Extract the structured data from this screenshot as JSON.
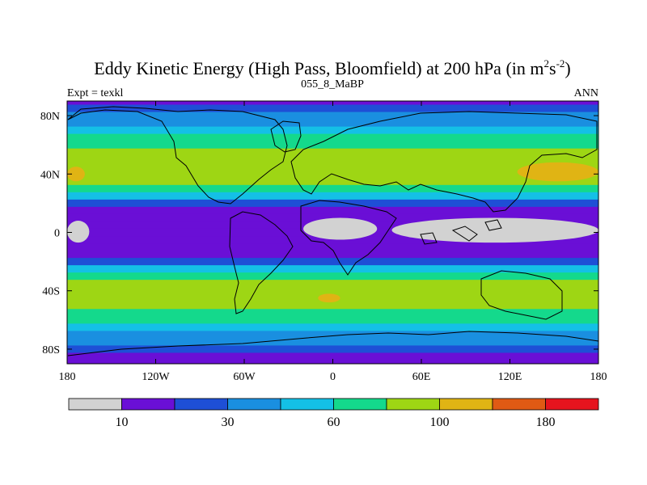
{
  "chart_data": {
    "type": "heatmap",
    "title": "Eddy Kinetic Energy (High Pass, Bloomfield) at 200 hPa (in m",
    "title_sup1": "2",
    "title_mid": "s",
    "title_sup2": "-2",
    "title_end": ")",
    "left_string": "Expt = texkl",
    "center_string": "055_8_MaBP",
    "right_string": "ANN",
    "x_ticks": [
      {
        "value": -180,
        "label": "180"
      },
      {
        "value": -120,
        "label": "120W"
      },
      {
        "value": -60,
        "label": "60W"
      },
      {
        "value": 0,
        "label": "0"
      },
      {
        "value": 60,
        "label": "60E"
      },
      {
        "value": 120,
        "label": "120E"
      },
      {
        "value": 180,
        "label": "180"
      }
    ],
    "y_ticks": [
      {
        "value": 80,
        "label": "80N"
      },
      {
        "value": 40,
        "label": "40N"
      },
      {
        "value": 0,
        "label": "0"
      },
      {
        "value": -40,
        "label": "40S"
      },
      {
        "value": -80,
        "label": "80S"
      }
    ],
    "xlim": [
      -180,
      180
    ],
    "ylim": [
      -90,
      90
    ],
    "units": "m2 s-2",
    "levels": [
      10,
      20,
      30,
      45,
      60,
      80,
      100,
      120,
      140,
      180
    ],
    "colorbar": {
      "colors": [
        "#d2d2d2",
        "#6a0fd6",
        "#1e4fd6",
        "#1a8fe0",
        "#14c0e6",
        "#14d98c",
        "#9ed614",
        "#e0b414",
        "#e05a14",
        "#e6141e"
      ],
      "labels": [
        {
          "after_box": 1,
          "text": "10"
        },
        {
          "after_box": 3,
          "text": "30"
        },
        {
          "after_box": 5,
          "text": "60"
        },
        {
          "after_box": 7,
          "text": "100"
        },
        {
          "after_box": 9,
          "text": "180"
        }
      ]
    },
    "zonal_band_estimates": [
      {
        "lat": 90,
        "value": 14
      },
      {
        "lat": 85,
        "value": 22
      },
      {
        "lat": 80,
        "value": 32
      },
      {
        "lat": 75,
        "value": 38
      },
      {
        "lat": 70,
        "value": 48
      },
      {
        "lat": 65,
        "value": 62
      },
      {
        "lat": 60,
        "value": 72
      },
      {
        "lat": 55,
        "value": 82
      },
      {
        "lat": 50,
        "value": 88
      },
      {
        "lat": 45,
        "value": 92
      },
      {
        "lat": 40,
        "value": 92
      },
      {
        "lat": 35,
        "value": 85
      },
      {
        "lat": 30,
        "value": 65
      },
      {
        "lat": 25,
        "value": 45
      },
      {
        "lat": 20,
        "value": 28
      },
      {
        "lat": 15,
        "value": 14
      },
      {
        "lat": 10,
        "value": 11
      },
      {
        "lat": 5,
        "value": 10
      },
      {
        "lat": 0,
        "value": 10
      },
      {
        "lat": -5,
        "value": 11
      },
      {
        "lat": -10,
        "value": 13
      },
      {
        "lat": -15,
        "value": 18
      },
      {
        "lat": -20,
        "value": 28
      },
      {
        "lat": -25,
        "value": 45
      },
      {
        "lat": -30,
        "value": 65
      },
      {
        "lat": -35,
        "value": 82
      },
      {
        "lat": -40,
        "value": 92
      },
      {
        "lat": -45,
        "value": 95
      },
      {
        "lat": -50,
        "value": 88
      },
      {
        "lat": -55,
        "value": 78
      },
      {
        "lat": -60,
        "value": 68
      },
      {
        "lat": -65,
        "value": 55
      },
      {
        "lat": -70,
        "value": 42
      },
      {
        "lat": -75,
        "value": 32
      },
      {
        "lat": -80,
        "value": 26
      },
      {
        "lat": -85,
        "value": 18
      },
      {
        "lat": -90,
        "value": 12
      }
    ],
    "regional_features": [
      {
        "name": "equatorial-minimum-africa",
        "lon_range": [
          -20,
          30
        ],
        "lat_range": [
          -5,
          10
        ],
        "value": 8
      },
      {
        "name": "equatorial-minimum-asia",
        "lon_range": [
          40,
          180
        ],
        "lat_range": [
          -7,
          10
        ],
        "value": 8
      },
      {
        "name": "equatorial-minimum-dateline",
        "lon_range": [
          -180,
          -165
        ],
        "lat_range": [
          -7,
          8
        ],
        "value": 8
      },
      {
        "name": "nh-jet-max-pacific",
        "lon_range": [
          125,
          180
        ],
        "lat_range": [
          35,
          48
        ],
        "value": 105
      },
      {
        "name": "nh-jet-max-atlantic",
        "lon_range": [
          -180,
          -168
        ],
        "lat_range": [
          35,
          45
        ],
        "value": 102
      },
      {
        "name": "sh-jet-max",
        "lon_range": [
          -10,
          5
        ],
        "lat_range": [
          -48,
          -42
        ],
        "value": 104
      }
    ]
  }
}
